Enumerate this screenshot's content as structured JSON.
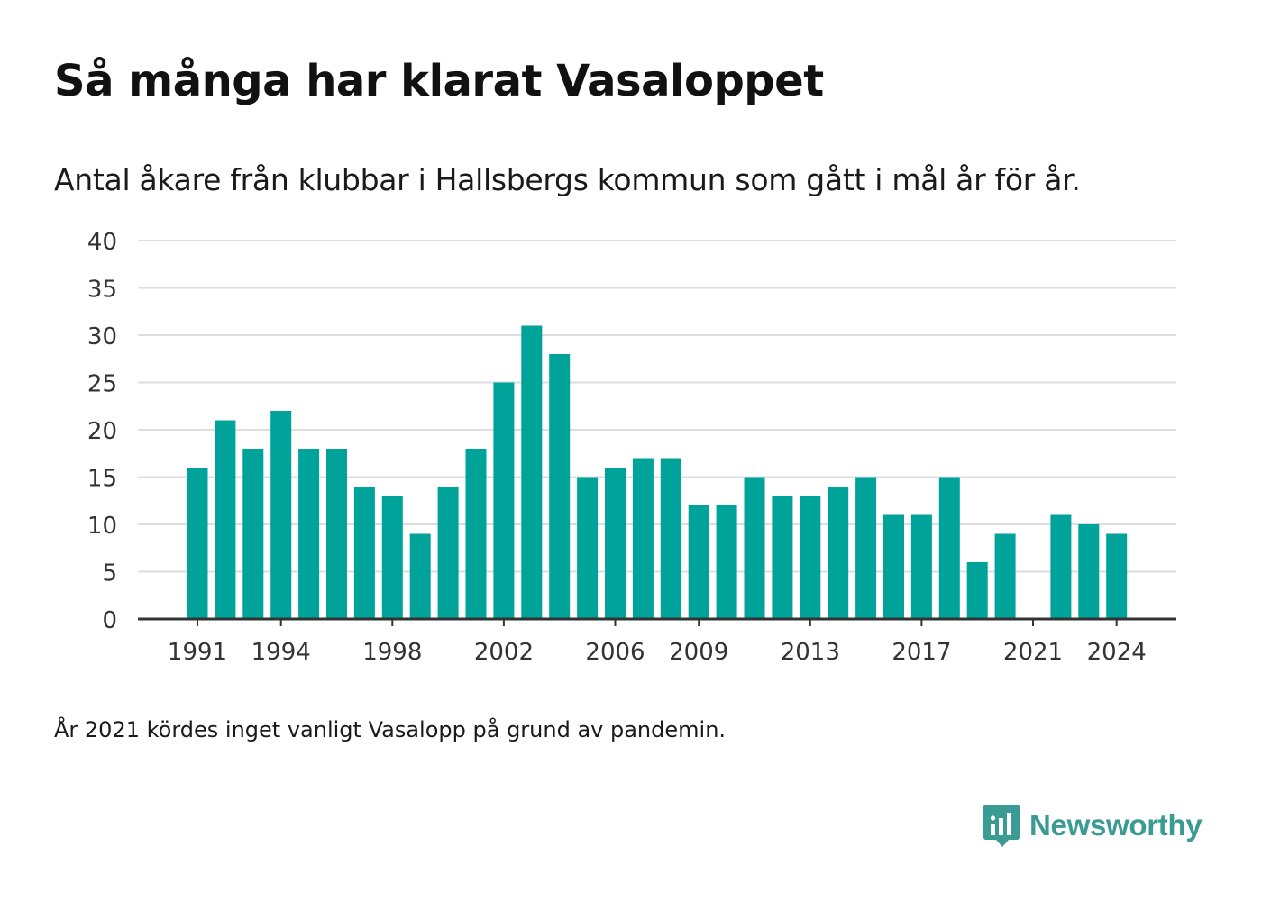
{
  "title": "Så många har klarat Vasaloppet",
  "subtitle": "Antal åkare från klubbar i Hallsbergs kommun som gått i mål år för år.",
  "note": "År 2021 kördes inget vanligt Vasalopp på grund av pandemin.",
  "brand": {
    "name": "Newsworthy",
    "icon": "newsworthy-logo-icon",
    "color": "#3a9a94"
  },
  "chart_data": {
    "type": "bar",
    "color": "#00a39a",
    "x": [
      1991,
      1992,
      1993,
      1994,
      1995,
      1996,
      1997,
      1998,
      1999,
      2000,
      2001,
      2002,
      2003,
      2004,
      2005,
      2006,
      2007,
      2008,
      2009,
      2010,
      2011,
      2012,
      2013,
      2014,
      2015,
      2016,
      2017,
      2018,
      2019,
      2020,
      2021,
      2022,
      2023,
      2024
    ],
    "values": [
      16,
      21,
      18,
      22,
      18,
      18,
      14,
      13,
      9,
      14,
      18,
      25,
      31,
      28,
      15,
      16,
      17,
      17,
      12,
      12,
      15,
      13,
      13,
      14,
      15,
      11,
      11,
      15,
      6,
      9,
      null,
      11,
      10,
      9
    ],
    "ylim": [
      0,
      40
    ],
    "yticks": [
      0,
      5,
      10,
      15,
      20,
      25,
      30,
      35,
      40
    ],
    "xtick_labels": [
      "1991",
      "1994",
      "1998",
      "2002",
      "2006",
      "2009",
      "2013",
      "2017",
      "2021",
      "2024"
    ],
    "grid": true,
    "xlabel": "",
    "ylabel": ""
  }
}
